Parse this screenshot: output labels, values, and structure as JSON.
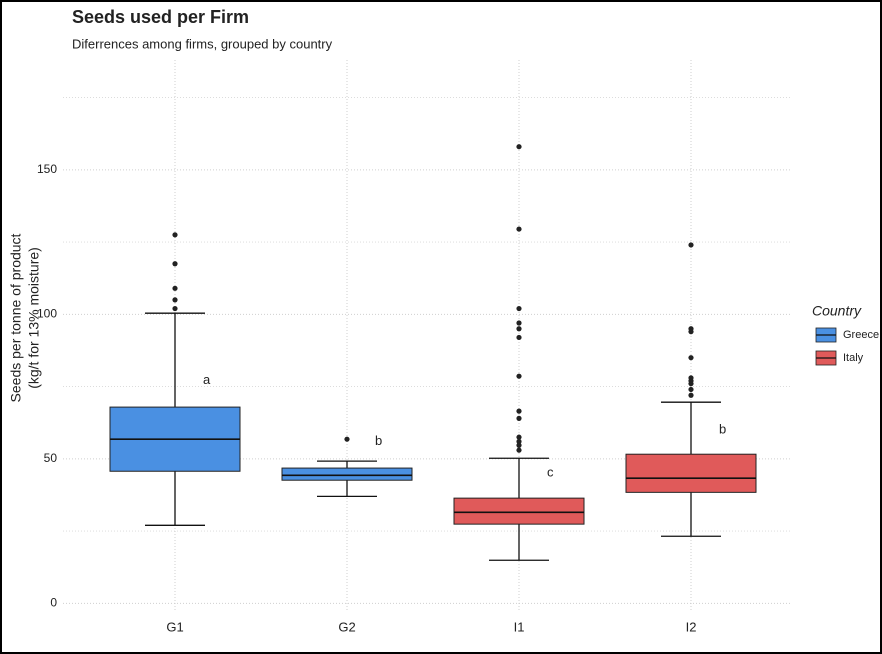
{
  "chart_data": {
    "type": "box",
    "title": "Seeds used per Firm",
    "subtitle": "Diferrences among firms, grouped by country",
    "y_label": [
      "Seeds per tonne of product",
      "(kg/t for 13% moisture)"
    ],
    "categories": [
      "G1",
      "G2",
      "I1",
      "I2"
    ],
    "ylim": [
      -3,
      188
    ],
    "yticks": [
      0,
      50,
      100,
      150
    ],
    "minor_yticks": [
      25,
      75,
      125,
      175
    ],
    "grid": true,
    "legend_title": "Country",
    "legend_position": "right",
    "series": [
      {
        "name": "Greece",
        "color": "#4a90e2",
        "boxes": [
          {
            "low": 27,
            "q1": 45.7,
            "median": 56.8,
            "q3": 67.9,
            "high": 100.4,
            "outliers": [
              102,
              105,
              109,
              117.5,
              127.5
            ]
          },
          {
            "low": 37,
            "q1": 42.6,
            "median": 44.3,
            "q3": 46.8,
            "high": 49.2,
            "outliers": [
              56.8
            ]
          }
        ]
      },
      {
        "name": "Italy",
        "color": "#e05a5a",
        "boxes": [
          {
            "low": 14.9,
            "q1": 27.4,
            "median": 31.5,
            "q3": 36.4,
            "high": 50.2,
            "outliers": [
              158,
              129.5,
              102,
              97,
              95,
              92,
              78.6,
              66.5,
              64,
              57.5,
              56,
              54.7,
              53
            ]
          },
          {
            "low": 23.2,
            "q1": 38.4,
            "median": 43.3,
            "q3": 51.6,
            "high": 69.6,
            "outliers": [
              124,
              95,
              94,
              85,
              78,
              77,
              76,
              74,
              72
            ]
          }
        ]
      }
    ],
    "annotations": [
      {
        "text": "a",
        "category": 0,
        "y": 77
      },
      {
        "text": "b",
        "category": 1,
        "y": 56
      },
      {
        "text": "c",
        "category": 2,
        "y": 45
      },
      {
        "text": "b",
        "category": 3,
        "y": 60
      }
    ]
  }
}
